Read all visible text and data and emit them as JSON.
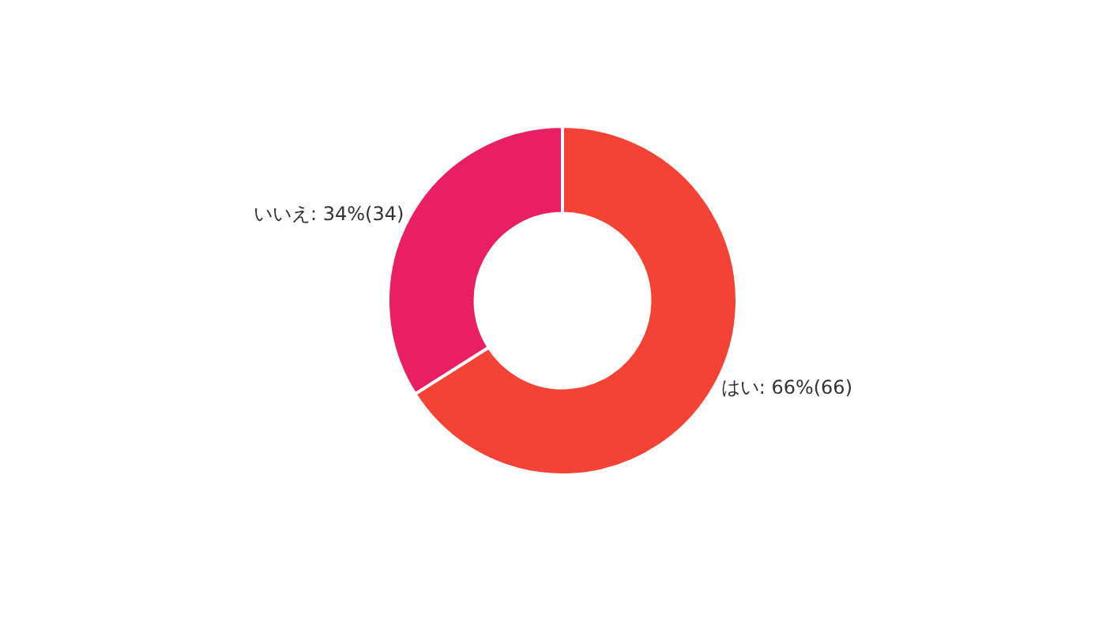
{
  "chart_data": {
    "type": "donut",
    "categories": [
      "はい",
      "いいえ"
    ],
    "values": [
      66,
      34
    ],
    "colors": [
      "#f44336",
      "#e91e63"
    ],
    "value_labels": [
      "66%(66)",
      "34%(34)"
    ],
    "legend": false
  }
}
